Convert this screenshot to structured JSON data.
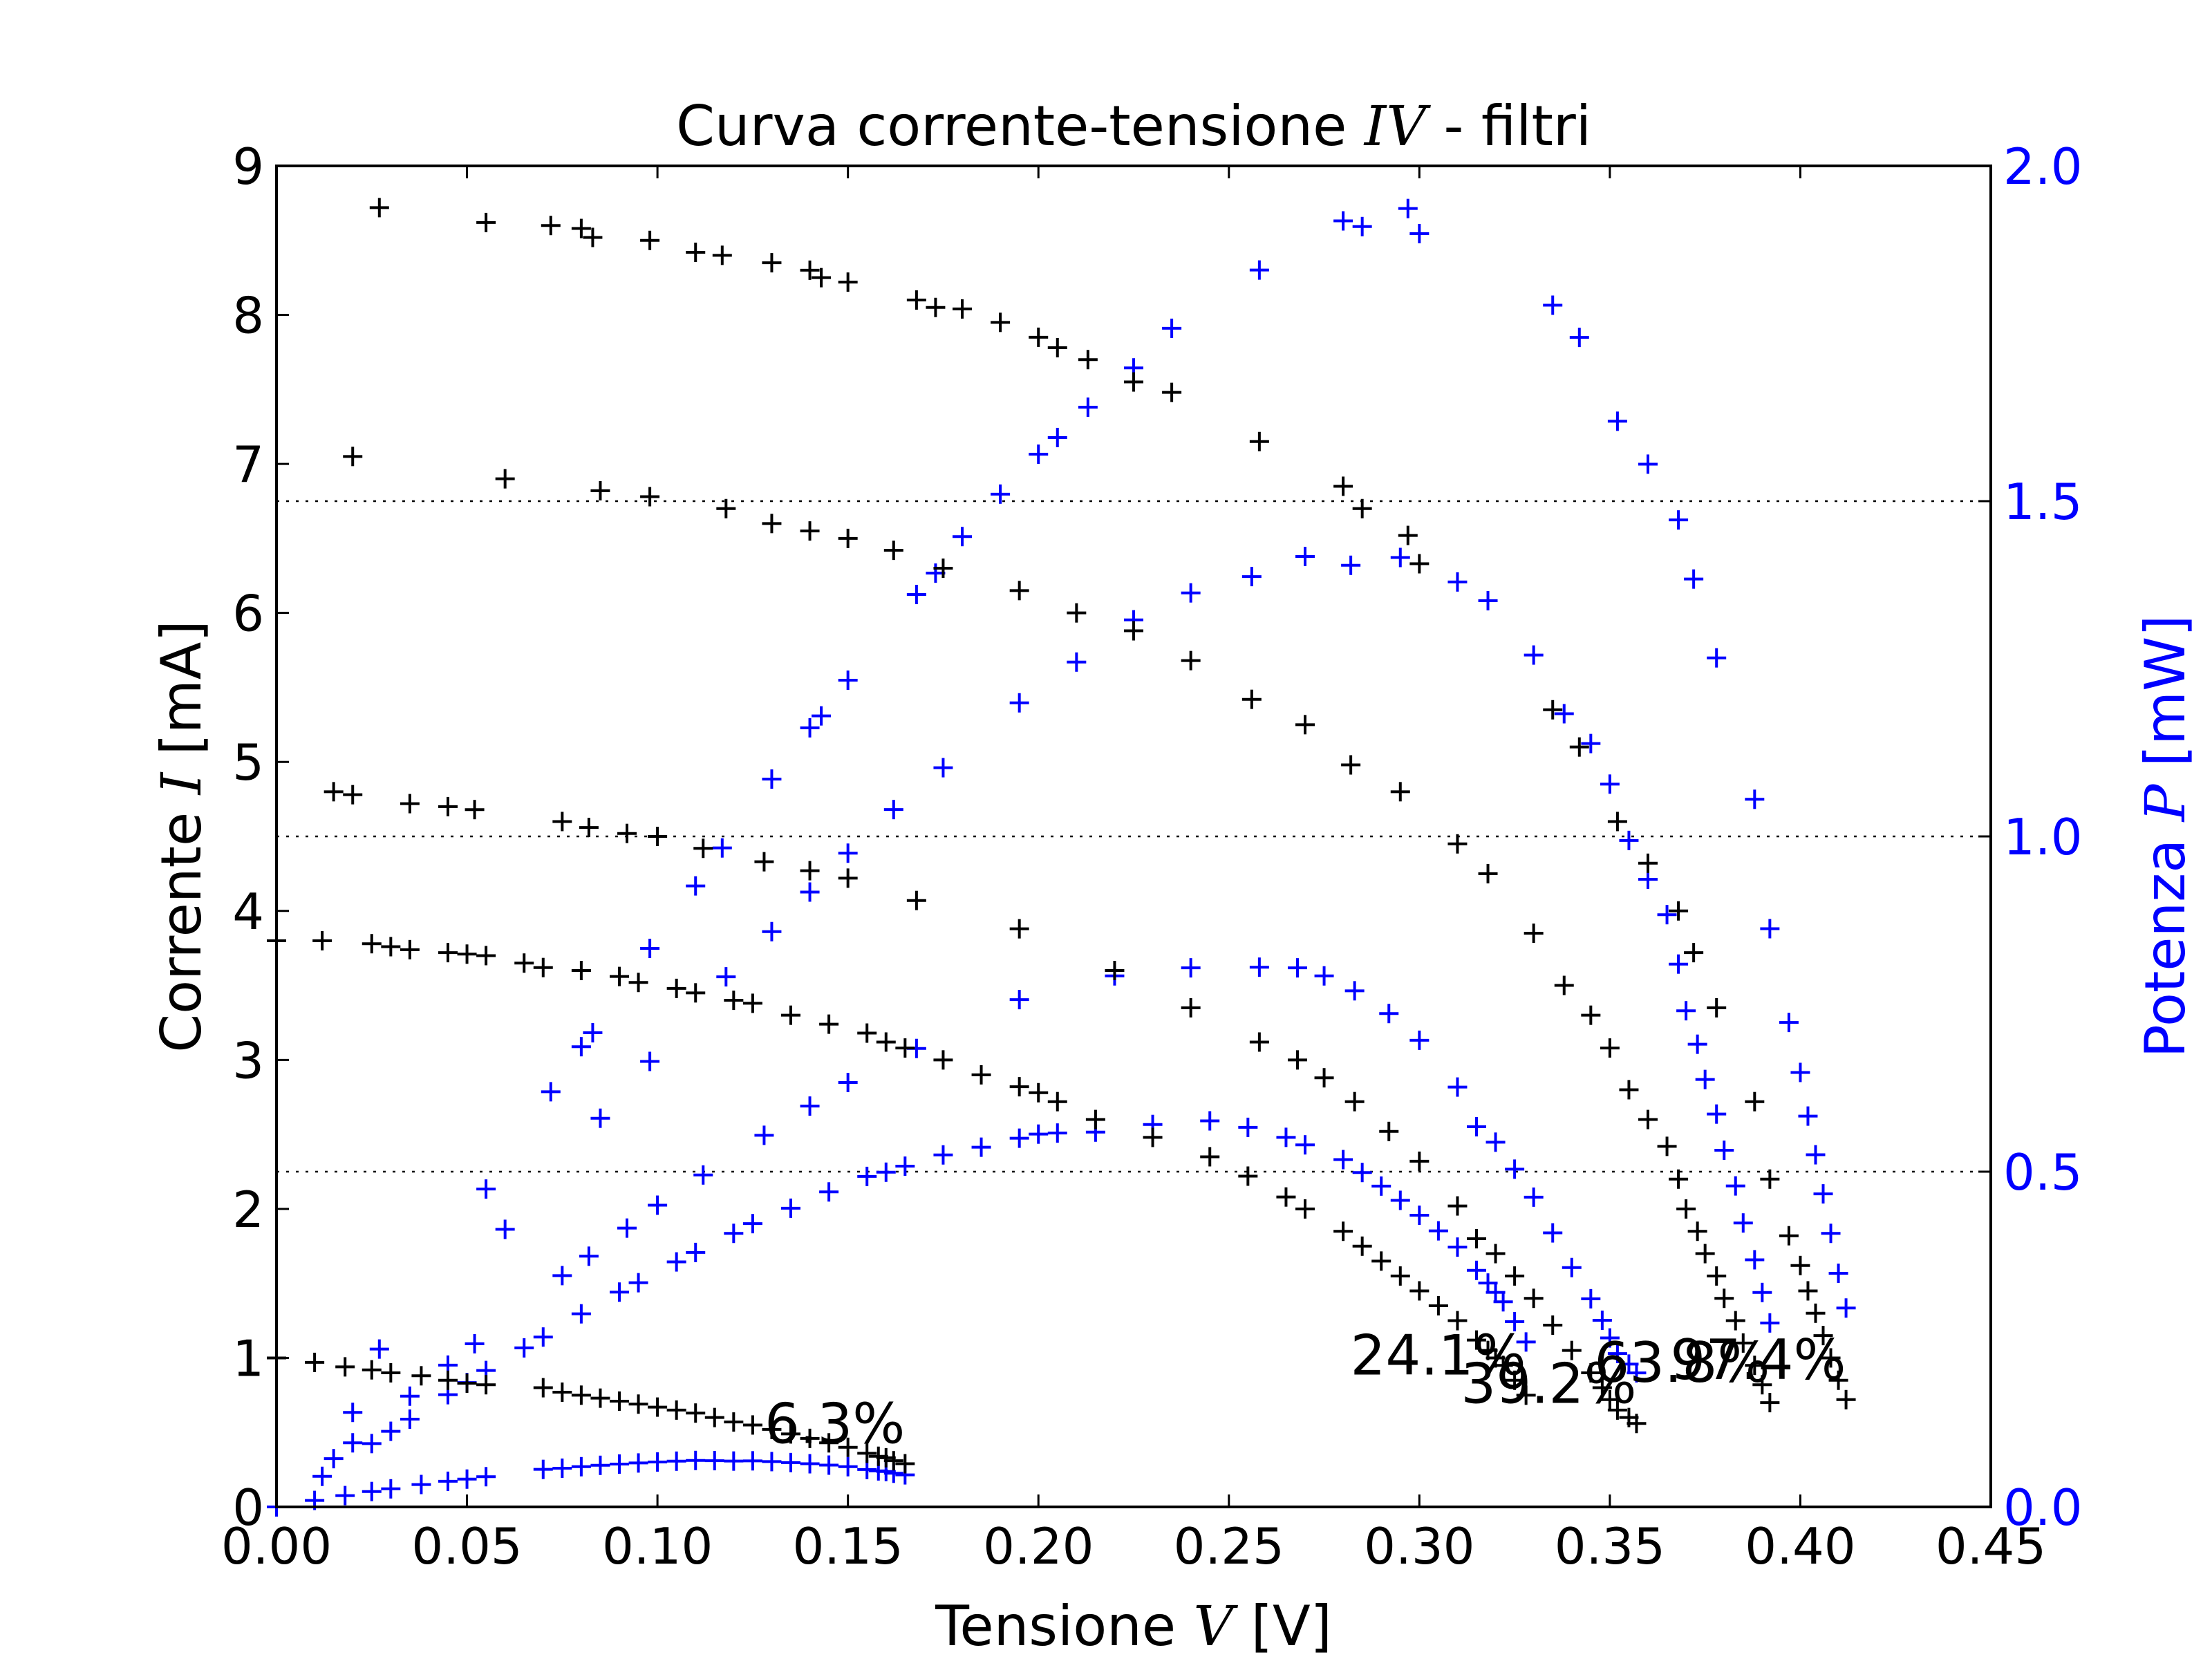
{
  "chart_data": {
    "type": "scatter",
    "title": {
      "pre": "Curva corrente-tensione ",
      "var": "IV",
      "post": " - filtri"
    },
    "xlabel": {
      "pre": "Tensione ",
      "var": "V",
      "post": " [V]"
    },
    "ylabel_left": {
      "pre": "Corrente ",
      "var": "I",
      "post": " [mA]"
    },
    "ylabel_right": {
      "pre": "Potenza ",
      "var": "P",
      "post": " [mW]"
    },
    "xlim": [
      0,
      0.45
    ],
    "ylim_left": [
      0,
      9
    ],
    "ylim_right": [
      0,
      2.0
    ],
    "x_ticks": [
      "0.00",
      "0.05",
      "0.10",
      "0.15",
      "0.20",
      "0.25",
      "0.30",
      "0.35",
      "0.40",
      "0.45"
    ],
    "y_left_ticks": [
      "0",
      "1",
      "2",
      "3",
      "4",
      "5",
      "6",
      "7",
      "8",
      "9"
    ],
    "y_right_ticks": [
      "0.0",
      "0.5",
      "1.0",
      "1.5",
      "2.0"
    ],
    "right_gridlines": [
      0.5,
      1.0,
      1.5
    ],
    "grid": "dotted horizontal at right-axis major ticks",
    "colors": {
      "current": "#000000",
      "power": "#0000ff",
      "right_axis": "#0000ff"
    },
    "marker": "+",
    "series": [
      {
        "annotation": "6.3%",
        "V": [
          0.0,
          0.01,
          0.018,
          0.025,
          0.03,
          0.038,
          0.045,
          0.05,
          0.055,
          0.07,
          0.075,
          0.08,
          0.085,
          0.09,
          0.095,
          0.1,
          0.105,
          0.11,
          0.115,
          0.12,
          0.125,
          0.13,
          0.135,
          0.14,
          0.145,
          0.15,
          0.155,
          0.158,
          0.16,
          0.162,
          0.165
        ],
        "I": [
          1.0,
          0.97,
          0.94,
          0.92,
          0.9,
          0.88,
          0.85,
          0.83,
          0.82,
          0.8,
          0.77,
          0.75,
          0.73,
          0.71,
          0.69,
          0.67,
          0.65,
          0.63,
          0.6,
          0.57,
          0.55,
          0.52,
          0.49,
          0.46,
          0.43,
          0.4,
          0.36,
          0.34,
          0.33,
          0.31,
          0.29
        ]
      },
      {
        "annotation": "24.1%",
        "V": [
          0.0,
          0.012,
          0.025,
          0.03,
          0.035,
          0.045,
          0.05,
          0.055,
          0.065,
          0.07,
          0.08,
          0.09,
          0.095,
          0.105,
          0.11,
          0.12,
          0.125,
          0.135,
          0.145,
          0.155,
          0.16,
          0.165,
          0.175,
          0.185,
          0.195,
          0.2,
          0.205,
          0.215,
          0.23,
          0.245,
          0.255,
          0.265,
          0.27,
          0.28,
          0.285,
          0.29,
          0.295,
          0.3,
          0.305,
          0.31,
          0.315,
          0.318,
          0.32,
          0.322,
          0.325,
          0.328
        ],
        "I": [
          3.8,
          3.8,
          3.78,
          3.76,
          3.74,
          3.72,
          3.71,
          3.7,
          3.65,
          3.62,
          3.6,
          3.56,
          3.52,
          3.48,
          3.45,
          3.4,
          3.38,
          3.3,
          3.24,
          3.18,
          3.12,
          3.08,
          3.0,
          2.9,
          2.82,
          2.78,
          2.72,
          2.6,
          2.48,
          2.35,
          2.22,
          2.08,
          2.0,
          1.85,
          1.75,
          1.65,
          1.55,
          1.45,
          1.35,
          1.25,
          1.12,
          1.05,
          1.0,
          0.95,
          0.85,
          0.75
        ]
      },
      {
        "annotation": "39.2%",
        "V": [
          0.015,
          0.02,
          0.035,
          0.045,
          0.052,
          0.075,
          0.082,
          0.092,
          0.1,
          0.112,
          0.128,
          0.14,
          0.15,
          0.168,
          0.195,
          0.22,
          0.24,
          0.258,
          0.268,
          0.275,
          0.283,
          0.292,
          0.3,
          0.31,
          0.315,
          0.32,
          0.325,
          0.33,
          0.335,
          0.34,
          0.345,
          0.348,
          0.35,
          0.352,
          0.355,
          0.357
        ],
        "I": [
          4.8,
          4.78,
          4.72,
          4.7,
          4.68,
          4.6,
          4.56,
          4.52,
          4.5,
          4.42,
          4.33,
          4.27,
          4.22,
          4.07,
          3.88,
          3.6,
          3.35,
          3.12,
          3.0,
          2.88,
          2.72,
          2.52,
          2.32,
          2.02,
          1.8,
          1.7,
          1.55,
          1.4,
          1.22,
          1.05,
          0.9,
          0.8,
          0.72,
          0.65,
          0.6,
          0.56
        ]
      },
      {
        "annotation": "63.8%",
        "V": [
          0.02,
          0.06,
          0.085,
          0.098,
          0.118,
          0.13,
          0.14,
          0.15,
          0.162,
          0.175,
          0.195,
          0.21,
          0.225,
          0.24,
          0.256,
          0.27,
          0.282,
          0.295,
          0.31,
          0.318,
          0.33,
          0.338,
          0.345,
          0.35,
          0.355,
          0.36,
          0.365,
          0.368,
          0.37,
          0.373,
          0.375,
          0.378,
          0.38,
          0.383,
          0.385,
          0.388,
          0.39,
          0.392
        ],
        "I": [
          7.05,
          6.9,
          6.82,
          6.78,
          6.7,
          6.6,
          6.55,
          6.5,
          6.42,
          6.3,
          6.15,
          6.0,
          5.88,
          5.68,
          5.42,
          5.25,
          4.98,
          4.8,
          4.45,
          4.25,
          3.85,
          3.5,
          3.3,
          3.08,
          2.8,
          2.6,
          2.42,
          2.2,
          2.0,
          1.85,
          1.7,
          1.55,
          1.4,
          1.25,
          1.1,
          0.95,
          0.82,
          0.7
        ]
      },
      {
        "annotation": "97.4%",
        "V": [
          0.027,
          0.055,
          0.072,
          0.08,
          0.083,
          0.098,
          0.11,
          0.117,
          0.13,
          0.14,
          0.143,
          0.15,
          0.168,
          0.173,
          0.18,
          0.19,
          0.2,
          0.205,
          0.213,
          0.225,
          0.235,
          0.258,
          0.28,
          0.285,
          0.297,
          0.3,
          0.335,
          0.342,
          0.352,
          0.36,
          0.368,
          0.372,
          0.378,
          0.388,
          0.392,
          0.397,
          0.4,
          0.402,
          0.404,
          0.406,
          0.408,
          0.41,
          0.412
        ],
        "I": [
          8.72,
          8.62,
          8.6,
          8.58,
          8.52,
          8.5,
          8.42,
          8.4,
          8.35,
          8.3,
          8.25,
          8.22,
          8.1,
          8.05,
          8.04,
          7.95,
          7.85,
          7.78,
          7.7,
          7.55,
          7.48,
          7.15,
          6.85,
          6.7,
          6.52,
          6.33,
          5.35,
          5.1,
          4.6,
          4.32,
          4.0,
          3.72,
          3.35,
          2.72,
          2.2,
          1.82,
          1.62,
          1.45,
          1.3,
          1.15,
          1.0,
          0.85,
          0.72
        ]
      }
    ]
  }
}
